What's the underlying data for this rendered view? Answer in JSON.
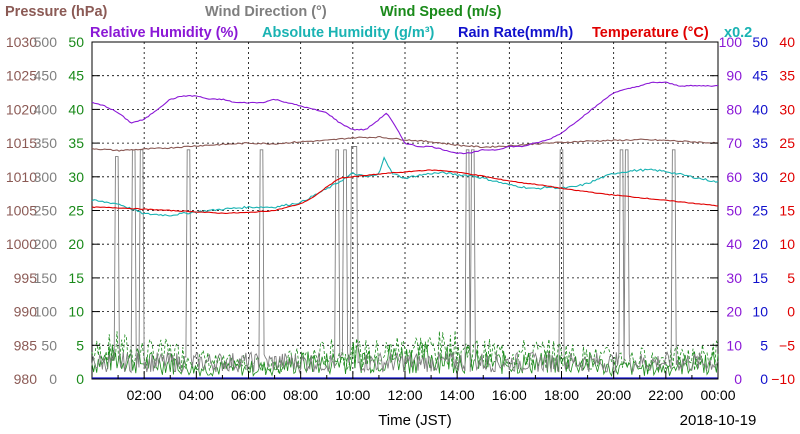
{
  "chart_data": {
    "type": "line",
    "date": "2018-10-19",
    "xlabel": "Time (JST)",
    "x_ticks": [
      "02:00",
      "04:00",
      "06:00",
      "08:00",
      "10:00",
      "12:00",
      "14:00",
      "16:00",
      "18:00",
      "20:00",
      "22:00",
      "00:00"
    ],
    "x_range_hours": [
      0,
      24
    ],
    "grid": true,
    "legend": [
      {
        "key": "pressure",
        "text": "Pressure (hPa)",
        "color": "#8b5a55"
      },
      {
        "key": "wind_dir",
        "text": "Wind Direction (°)",
        "color": "#7f7f7f"
      },
      {
        "key": "wind_speed",
        "text": "Wind Speed (m/s)",
        "color": "#1a8a1a"
      },
      {
        "key": "rh",
        "text": "Relative Humidity (%)",
        "color": "#8b18d6"
      },
      {
        "key": "ah",
        "text": "Absolute Humidity (g/m³)",
        "color": "#1ab3b3"
      },
      {
        "key": "ah_scale",
        "text": "x0.2",
        "color": "#1ab3b3"
      },
      {
        "key": "rain",
        "text": "Rain Rate(mm/h)",
        "color": "#1010cc"
      },
      {
        "key": "temp",
        "text": "Temperature (°C)",
        "color": "#e00000"
      }
    ],
    "axes": {
      "pressure": {
        "color": "#8b5a55",
        "range": [
          980,
          1030
        ],
        "ticks": [
          "980",
          "985",
          "990",
          "995",
          "1000",
          "1005",
          "1010",
          "1015",
          "1020",
          "1025",
          "1030"
        ]
      },
      "wind_dir": {
        "color": "#7f7f7f",
        "range": [
          0,
          500
        ],
        "ticks": [
          "0",
          "50",
          "100",
          "150",
          "200",
          "250",
          "300",
          "350",
          "400",
          "450",
          "500"
        ]
      },
      "wind_speed": {
        "color": "#1a8a1a",
        "range": [
          0,
          50
        ],
        "ticks": [
          "0",
          "5",
          "10",
          "15",
          "20",
          "25",
          "30",
          "35",
          "40",
          "45",
          "50"
        ]
      },
      "rh": {
        "color": "#8b18d6",
        "range": [
          0,
          100
        ],
        "ticks": [
          "0",
          "10",
          "20",
          "30",
          "40",
          "50",
          "60",
          "70",
          "80",
          "90",
          "100"
        ]
      },
      "rain": {
        "color": "#1010cc",
        "range": [
          0,
          50
        ],
        "ticks": [
          "0",
          "5",
          "10",
          "15",
          "20",
          "25",
          "30",
          "35",
          "40",
          "45",
          "50"
        ]
      },
      "temp": {
        "color": "#e00000",
        "range": [
          -10,
          40
        ],
        "ticks": [
          "−10",
          "−5",
          "0",
          "5",
          "10",
          "15",
          "20",
          "25",
          "30",
          "35",
          "40"
        ]
      }
    },
    "series": [
      {
        "key": "rh",
        "axis": "rh",
        "color": "#8b18d6",
        "x": [
          0,
          0.5,
          1,
          1.5,
          2,
          2.5,
          3,
          3.5,
          4,
          4.5,
          5,
          5.5,
          6,
          6.5,
          7,
          7.5,
          8,
          8.5,
          9,
          9.5,
          10,
          10.5,
          11,
          11.3,
          11.7,
          12,
          12.5,
          13,
          13.5,
          14,
          14.5,
          15,
          15.5,
          16,
          16.5,
          17,
          17.5,
          18,
          18.5,
          19,
          19.5,
          20,
          20.5,
          21,
          21.5,
          22,
          22.5,
          23,
          23.5,
          24
        ],
        "y": [
          82,
          81,
          79,
          76,
          77,
          80,
          83,
          84,
          84,
          83,
          83,
          82,
          82,
          82,
          83,
          82,
          81,
          80,
          79,
          76,
          74,
          74,
          77,
          79,
          74,
          70,
          69,
          69,
          68,
          67,
          67,
          68,
          68,
          69,
          69,
          70,
          71,
          73,
          76,
          79,
          82,
          85,
          86,
          87,
          88,
          88,
          87,
          87,
          87,
          87
        ]
      },
      {
        "key": "pressure",
        "axis": "pressure",
        "color": "#8b5a55",
        "x": [
          0,
          1,
          2,
          3,
          4,
          5,
          6,
          7,
          8,
          9,
          10,
          11,
          12,
          13,
          14,
          15,
          16,
          17,
          18,
          19,
          20,
          21,
          22,
          23,
          24
        ],
        "y": [
          1014.2,
          1013.9,
          1014.1,
          1014.3,
          1014.6,
          1014.8,
          1015.0,
          1014.9,
          1015.2,
          1015.4,
          1015.8,
          1015.9,
          1015.5,
          1015.2,
          1014.7,
          1014.4,
          1014.6,
          1014.9,
          1015.1,
          1015.3,
          1015.4,
          1015.5,
          1015.4,
          1015.2,
          1015.0
        ]
      },
      {
        "key": "ah",
        "axis": "wind_dir",
        "color": "#1ab3b3",
        "note": "x0.2 scaled, read on wind-direction scale",
        "x": [
          0,
          1,
          2,
          3,
          4,
          5,
          6,
          7,
          8,
          9,
          9.5,
          10,
          10.5,
          11,
          11.2,
          11.5,
          12,
          12.5,
          13,
          13.5,
          14,
          14.5,
          15,
          15.5,
          16,
          16.5,
          17,
          17.5,
          18,
          18.5,
          19,
          19.5,
          20,
          20.5,
          21,
          21.5,
          22,
          22.5,
          23,
          23.5,
          24
        ],
        "y": [
          265,
          260,
          245,
          243,
          248,
          252,
          255,
          255,
          262,
          282,
          293,
          305,
          300,
          303,
          330,
          305,
          298,
          302,
          305,
          306,
          303,
          302,
          298,
          293,
          288,
          285,
          282,
          285,
          283,
          285,
          290,
          298,
          305,
          308,
          310,
          310,
          308,
          304,
          300,
          296,
          292
        ]
      },
      {
        "key": "temp",
        "axis": "temp",
        "color": "#e00000",
        "x": [
          0,
          1,
          2,
          3,
          4,
          5,
          6,
          7,
          8,
          8.5,
          9,
          9.5,
          10,
          10.5,
          11,
          11.5,
          12,
          12.5,
          13,
          13.5,
          14,
          14.5,
          15,
          15.5,
          16,
          16.5,
          17,
          17.5,
          18,
          18.5,
          19,
          19.5,
          20,
          20.5,
          21,
          21.5,
          22,
          22.5,
          23,
          23.5,
          24
        ],
        "y": [
          15.5,
          15.4,
          15.2,
          15.0,
          14.8,
          14.6,
          14.7,
          15.0,
          16.0,
          17.0,
          18.5,
          19.8,
          20.0,
          20.2,
          20.4,
          20.6,
          20.7,
          20.9,
          21.0,
          20.9,
          20.7,
          20.4,
          20.1,
          19.7,
          19.4,
          19.1,
          18.9,
          18.6,
          18.3,
          18.0,
          17.8,
          17.5,
          17.3,
          17.1,
          16.9,
          16.7,
          16.5,
          16.3,
          16.1,
          15.9,
          15.7
        ]
      },
      {
        "key": "wind_dir",
        "axis": "wind_dir",
        "color": "#7f7f7f",
        "note": "mostly near 0 with spikes to ~340",
        "spikes_x": [
          0.95,
          1.6,
          1.9,
          3.7,
          6.5,
          9.4,
          9.7,
          10.0,
          10.1,
          14.4,
          14.6,
          18.0,
          20.3,
          20.5,
          22.3
        ],
        "spikes_y": [
          330,
          340,
          340,
          340,
          340,
          340,
          340,
          345,
          345,
          340,
          340,
          340,
          340,
          340,
          340
        ]
      },
      {
        "key": "wind_speed",
        "axis": "wind_speed",
        "color": "#1a8a1a",
        "note": "noisy band 0–7 m/s, dashed gust trace",
        "x": [
          0,
          1,
          2,
          3,
          4,
          5,
          6,
          7,
          8,
          9,
          10,
          11,
          12,
          13,
          14,
          15,
          16,
          17,
          18,
          19,
          20,
          21,
          22,
          23,
          24
        ],
        "y": [
          3,
          4,
          3,
          3,
          2,
          2,
          2,
          2,
          3,
          3,
          4,
          4,
          4,
          4,
          4,
          3,
          3,
          3,
          3,
          3,
          2,
          2,
          2,
          3,
          3
        ],
        "gust": [
          5,
          6,
          5,
          5,
          4,
          3,
          3,
          3,
          4,
          5,
          5,
          5,
          6,
          6,
          6,
          5,
          5,
          5,
          5,
          4,
          4,
          4,
          4,
          4,
          5
        ]
      },
      {
        "key": "rain",
        "axis": "rain",
        "color": "#1010cc",
        "x": [
          0,
          24
        ],
        "y": [
          0,
          0
        ]
      }
    ]
  }
}
